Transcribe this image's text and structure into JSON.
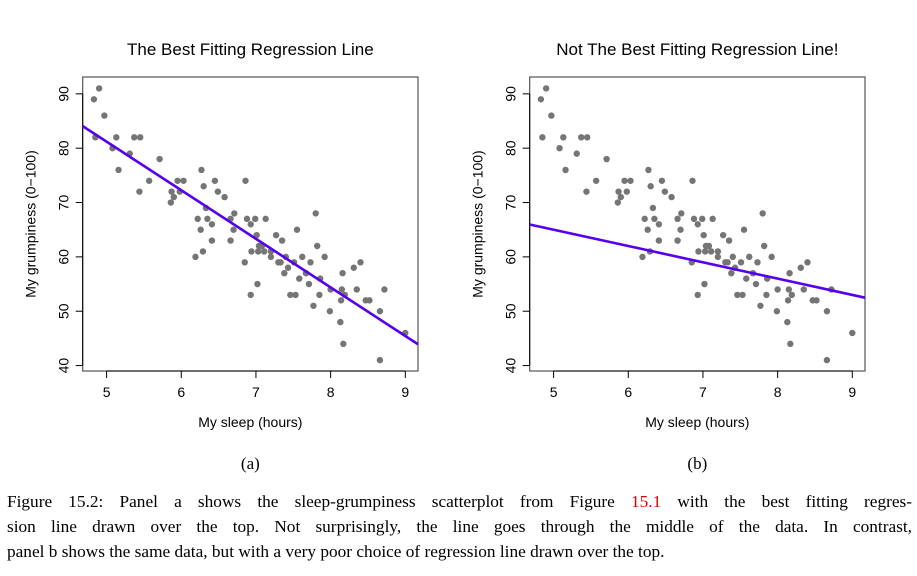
{
  "chart_data": [
    {
      "type": "scatter",
      "panel_label": "(a)",
      "title": "The Best Fitting Regression Line",
      "xlabel": "My sleep (hours)",
      "ylabel": "My grumpiness (0−100)",
      "xlim": [
        4.68,
        9.17
      ],
      "ylim": [
        39.0,
        93.1
      ],
      "xticks": [
        5,
        6,
        7,
        8,
        9
      ],
      "yticks": [
        40,
        50,
        60,
        70,
        80,
        90
      ],
      "grid": false,
      "point_color": "#757575",
      "line_color": "#5500ee",
      "regression_line": {
        "intercept": 125.9,
        "slope": -8.94
      },
      "x": [
        4.83,
        4.9,
        4.97,
        4.85,
        5.13,
        5.37,
        5.45,
        5.08,
        5.31,
        5.16,
        5.71,
        5.57,
        5.44,
        5.87,
        5.9,
        5.86,
        5.95,
        6.03,
        5.98,
        6.27,
        6.3,
        6.45,
        6.49,
        6.58,
        6.86,
        6.33,
        6.22,
        6.35,
        6.26,
        6.41,
        6.41,
        6.29,
        6.19,
        6.66,
        6.71,
        6.7,
        6.66,
        6.88,
        6.99,
        7.13,
        6.93,
        7.01,
        7.04,
        7.08,
        6.94,
        7.03,
        7.11,
        6.85,
        7.02,
        6.93,
        7.27,
        7.35,
        7.55,
        7.2,
        7.2,
        7.4,
        7.3,
        7.33,
        7.51,
        7.43,
        7.38,
        7.62,
        7.73,
        7.67,
        7.58,
        7.71,
        7.8,
        7.82,
        7.92,
        7.86,
        8.0,
        7.85,
        7.46,
        7.53,
        7.77,
        7.99,
        8.16,
        8.15,
        8.19,
        8.14,
        8.13,
        8.17,
        8.31,
        8.4,
        8.35,
        8.47,
        8.52,
        8.72,
        8.66,
        8.66,
        9.0
      ],
      "y": [
        89,
        91,
        86,
        82,
        82,
        82,
        82,
        80,
        79,
        76,
        78,
        74,
        72,
        72,
        71,
        70,
        74,
        74,
        72,
        76,
        73,
        74,
        72,
        71,
        74,
        69,
        67,
        67,
        65,
        66,
        63,
        61,
        60,
        67,
        68,
        65,
        63,
        67,
        67,
        67,
        66,
        64,
        62,
        62,
        61,
        61,
        61,
        59,
        55,
        53,
        64,
        63,
        65,
        61,
        60,
        60,
        59,
        59,
        59,
        58,
        57,
        60,
        59,
        57,
        56,
        55,
        68,
        62,
        60,
        56,
        54,
        53,
        53,
        53,
        51,
        50,
        57,
        54,
        53,
        52,
        48,
        44,
        58,
        59,
        54,
        52,
        52,
        54,
        50,
        41,
        46
      ]
    },
    {
      "type": "scatter",
      "panel_label": "(b)",
      "title": "Not The Best Fitting Regression Line!",
      "xlabel": "My sleep (hours)",
      "ylabel": "My grumpiness (0−100)",
      "xlim": [
        4.68,
        9.17
      ],
      "ylim": [
        39.0,
        93.1
      ],
      "xticks": [
        5,
        6,
        7,
        8,
        9
      ],
      "yticks": [
        40,
        50,
        60,
        70,
        80,
        90
      ],
      "grid": false,
      "point_color": "#757575",
      "line_color": "#5500ee",
      "regression_line": {
        "intercept": 80,
        "slope": -3
      },
      "x": [
        4.83,
        4.9,
        4.97,
        4.85,
        5.13,
        5.37,
        5.45,
        5.08,
        5.31,
        5.16,
        5.71,
        5.57,
        5.44,
        5.87,
        5.9,
        5.86,
        5.95,
        6.03,
        5.98,
        6.27,
        6.3,
        6.45,
        6.49,
        6.58,
        6.86,
        6.33,
        6.22,
        6.35,
        6.26,
        6.41,
        6.41,
        6.29,
        6.19,
        6.66,
        6.71,
        6.7,
        6.66,
        6.88,
        6.99,
        7.13,
        6.93,
        7.01,
        7.04,
        7.08,
        6.94,
        7.03,
        7.11,
        6.85,
        7.02,
        6.93,
        7.27,
        7.35,
        7.55,
        7.2,
        7.2,
        7.4,
        7.3,
        7.33,
        7.51,
        7.43,
        7.38,
        7.62,
        7.73,
        7.67,
        7.58,
        7.71,
        7.8,
        7.82,
        7.92,
        7.86,
        8.0,
        7.85,
        7.46,
        7.53,
        7.77,
        7.99,
        8.16,
        8.15,
        8.19,
        8.14,
        8.13,
        8.17,
        8.31,
        8.4,
        8.35,
        8.47,
        8.52,
        8.72,
        8.66,
        8.66,
        9.0
      ],
      "y": [
        89,
        91,
        86,
        82,
        82,
        82,
        82,
        80,
        79,
        76,
        78,
        74,
        72,
        72,
        71,
        70,
        74,
        74,
        72,
        76,
        73,
        74,
        72,
        71,
        74,
        69,
        67,
        67,
        65,
        66,
        63,
        61,
        60,
        67,
        68,
        65,
        63,
        67,
        67,
        67,
        66,
        64,
        62,
        62,
        61,
        61,
        61,
        59,
        55,
        53,
        64,
        63,
        65,
        61,
        60,
        60,
        59,
        59,
        59,
        58,
        57,
        60,
        59,
        57,
        56,
        55,
        68,
        62,
        60,
        56,
        54,
        53,
        53,
        53,
        51,
        50,
        57,
        54,
        53,
        52,
        48,
        44,
        58,
        59,
        54,
        52,
        52,
        54,
        50,
        41,
        46
      ]
    }
  ],
  "caption": {
    "line1_prefix": "Figure 15.2: Panel a shows the sleep-grumpiness scatterplot from Figure ",
    "figure_ref": "15.1",
    "line1_suffix": " with the best fitting regres-",
    "line2": "sion line drawn over the top. Not surprisingly, the line goes through the middle of the data. In contrast,",
    "line3": "panel b shows the same data, but with a very poor choice of regression line drawn over the top."
  }
}
